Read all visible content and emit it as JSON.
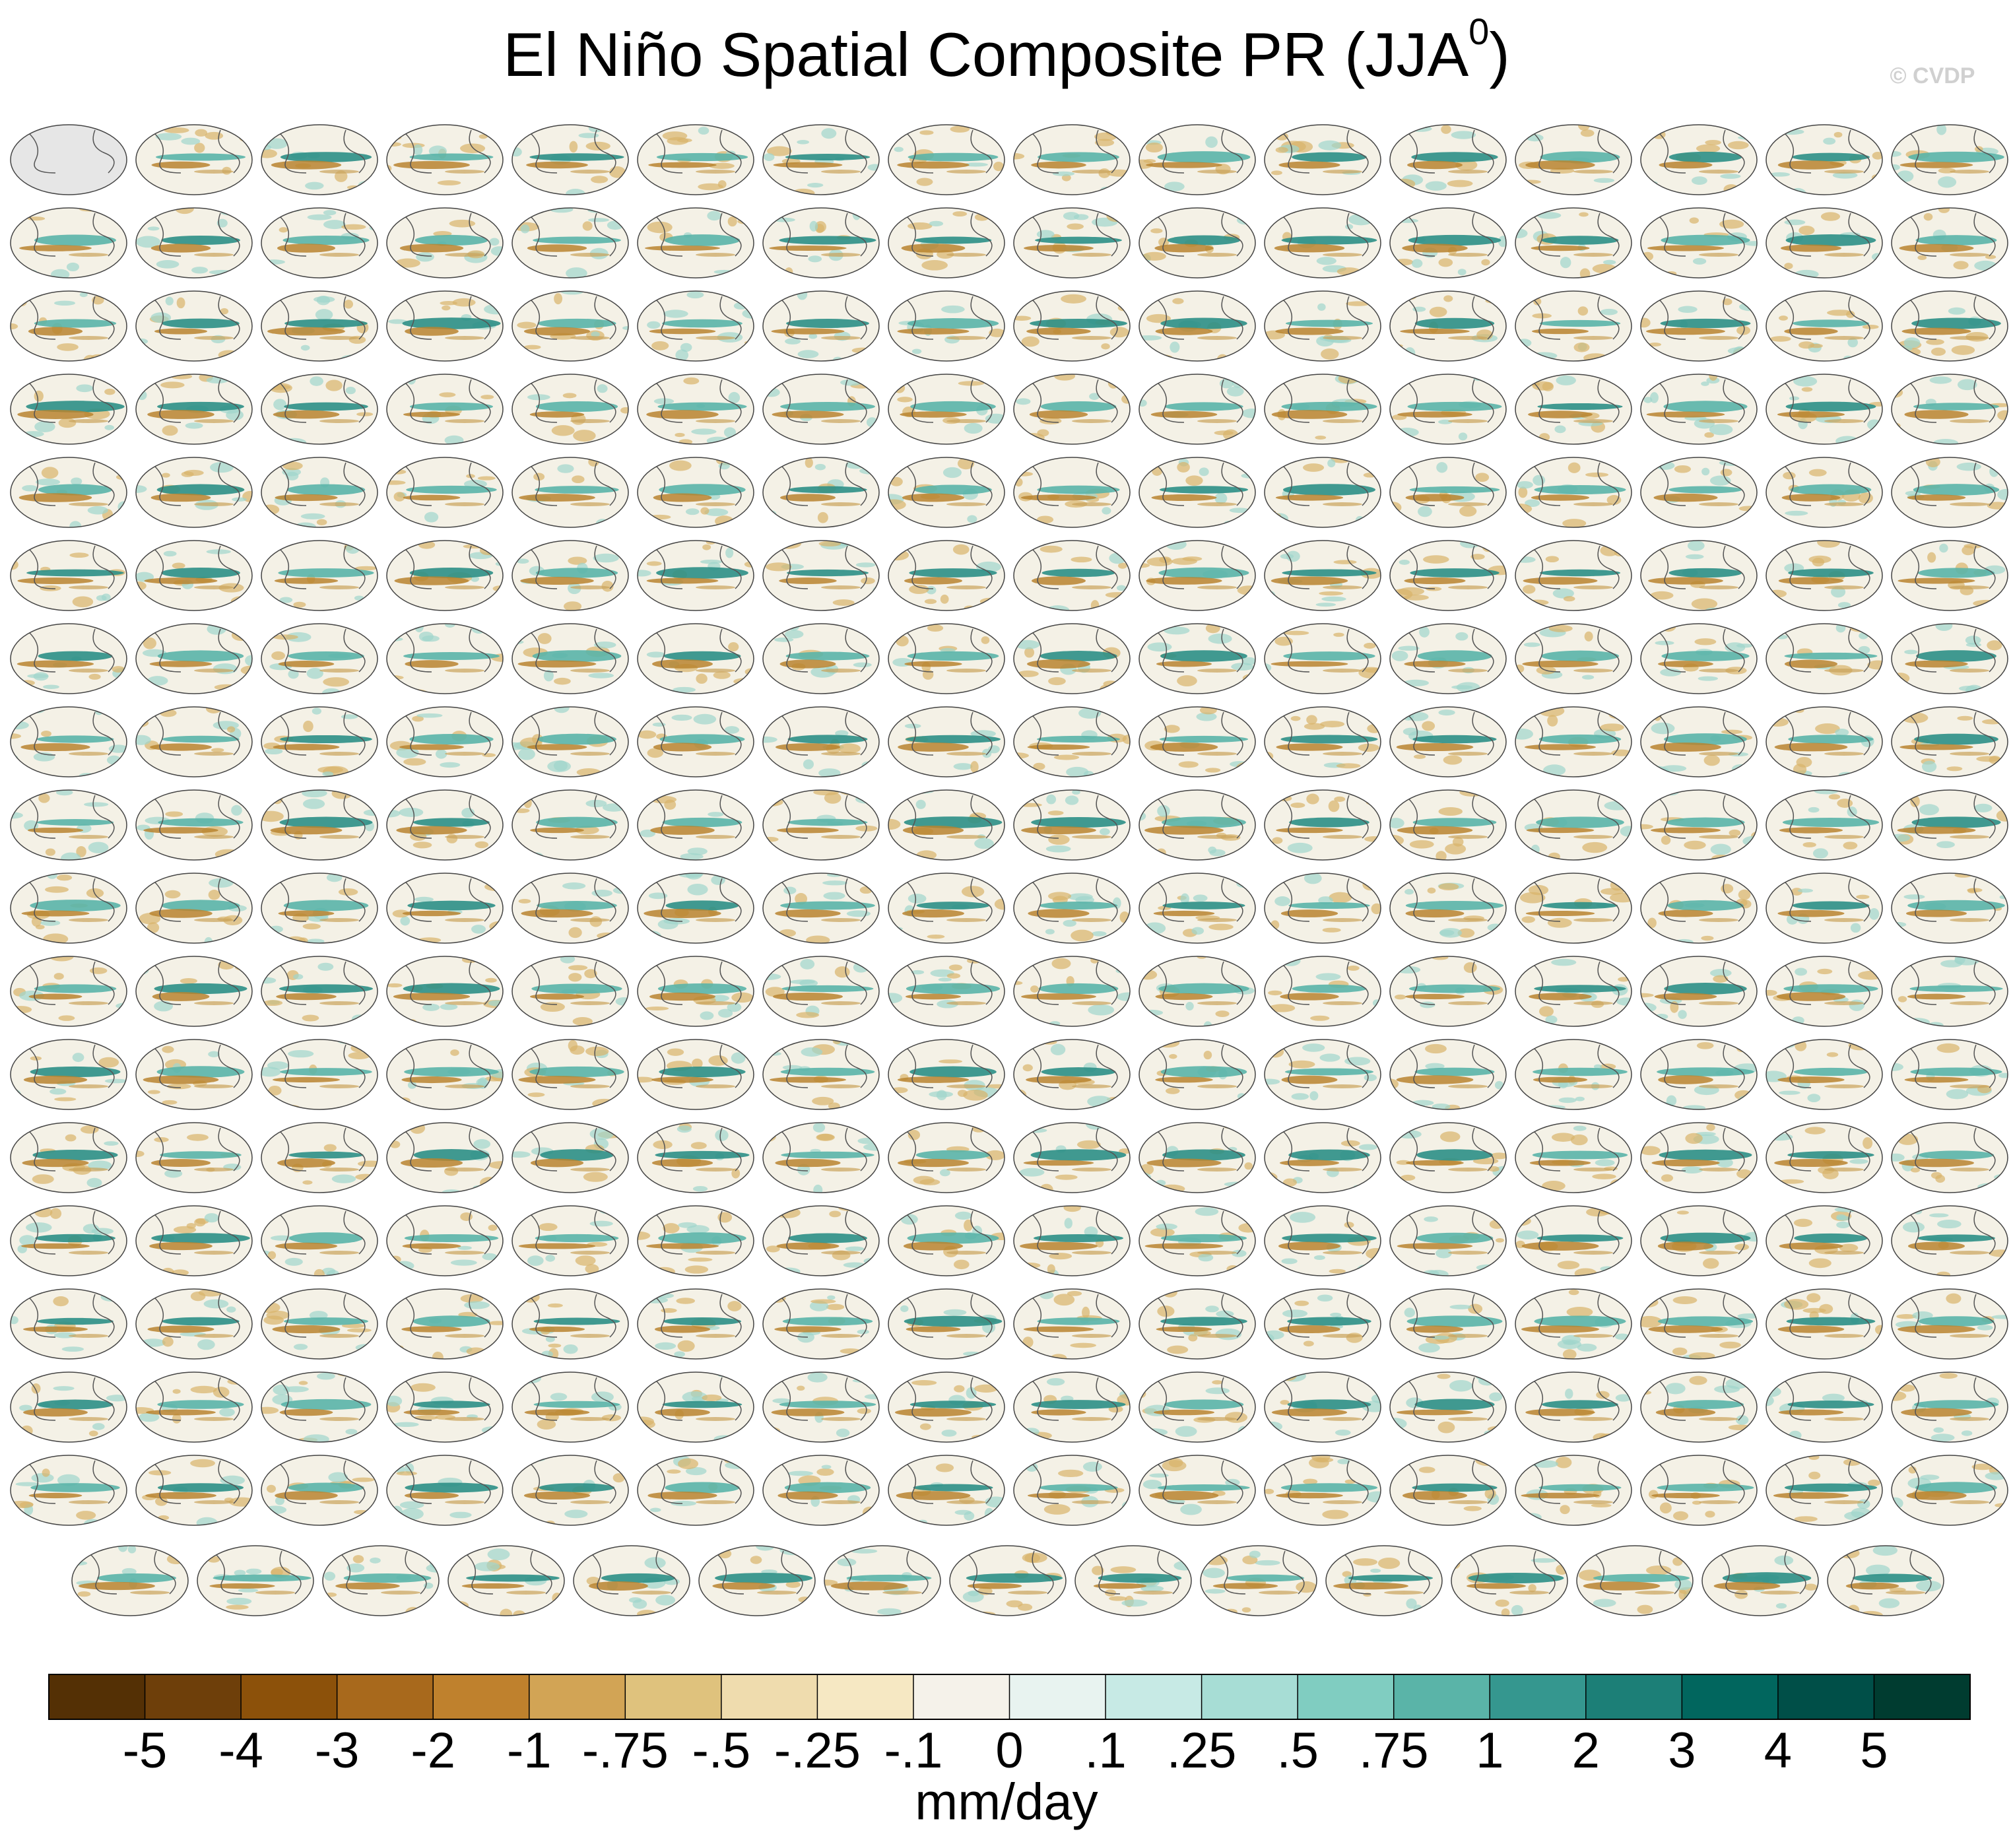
{
  "title_main": "El Niño Spatial Composite PR (JJA",
  "title_sup": "0",
  "title_end": ")",
  "copyright": "© CVDP",
  "colorbar": {
    "colors": [
      "#543005",
      "#6e3f0a",
      "#8c510a",
      "#a8691c",
      "#bf812d",
      "#d2a455",
      "#dfc27d",
      "#efdcae",
      "#f6e8c3",
      "#f5f2ea",
      "#e8f3f0",
      "#c7eae5",
      "#a7ddd5",
      "#80cdc1",
      "#5ab4a8",
      "#35978f",
      "#1c7f77",
      "#01665e",
      "#004f48",
      "#003c30"
    ],
    "ticks": [
      -5,
      -4,
      -3,
      -2,
      -1,
      {
        "value": -0.75,
        "label": "-.75"
      },
      {
        "value": -0.5,
        "label": "-.5"
      },
      {
        "value": -0.25,
        "label": "-.25"
      },
      {
        "value": -0.1,
        "label": "-.1"
      },
      0,
      {
        "value": 0.1,
        "label": ".1"
      },
      {
        "value": 0.25,
        "label": ".25"
      },
      {
        "value": 0.5,
        "label": ".5"
      },
      {
        "value": 0.75,
        "label": ".75"
      },
      1,
      2,
      3,
      4,
      5
    ],
    "label": "mm/day"
  }
}
